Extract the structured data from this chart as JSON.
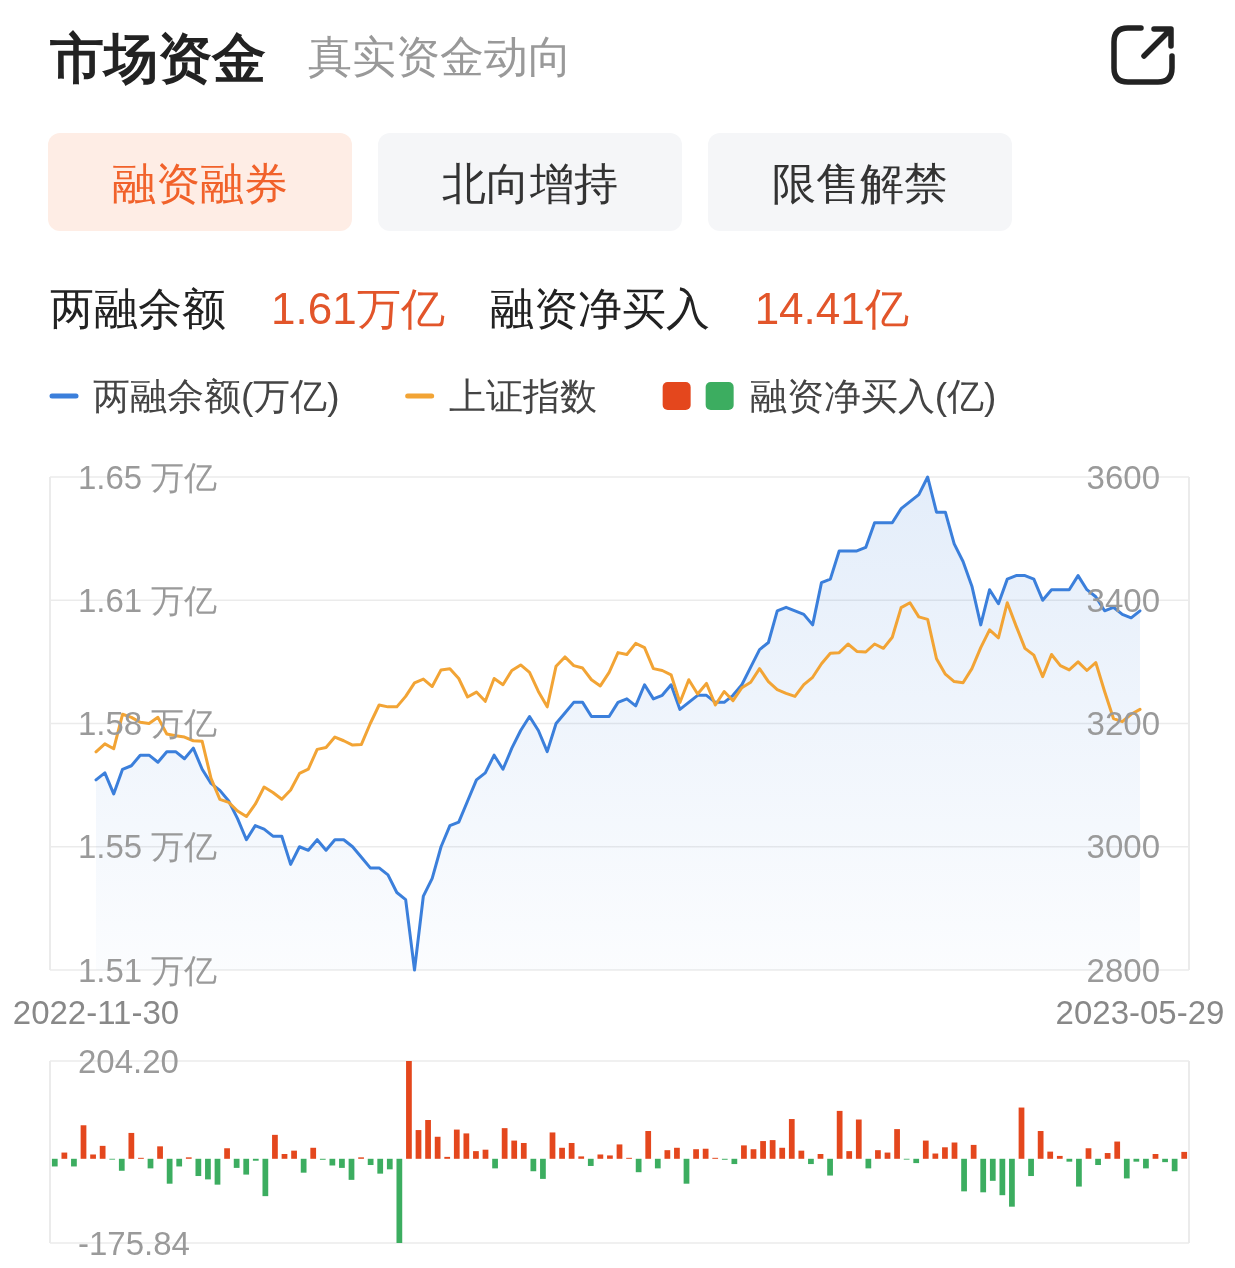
{
  "chart_data": [
    {
      "type": "other",
      "title": "市场资金",
      "subtitle": "真实资金动向",
      "annotations": [
        "融资融券",
        "北向增持",
        "限售解禁",
        "两融余额",
        "1.61万亿",
        "融资净买入",
        "14.41亿"
      ]
    },
    {
      "type": "line",
      "categories": [
        "2022-11-30",
        null,
        null,
        null,
        null,
        null,
        null,
        null,
        null,
        null,
        null,
        null,
        null,
        null,
        null,
        null,
        null,
        null,
        null,
        null,
        null,
        null,
        null,
        null,
        null,
        null,
        null,
        null,
        null,
        null,
        null,
        null,
        null,
        null,
        null,
        null,
        null,
        null,
        null,
        null,
        null,
        null,
        null,
        null,
        null,
        null,
        null,
        null,
        null,
        null,
        null,
        null,
        null,
        null,
        null,
        null,
        null,
        null,
        null,
        null,
        null,
        null,
        null,
        null,
        null,
        null,
        null,
        null,
        null,
        null,
        null,
        null,
        null,
        null,
        null,
        null,
        null,
        null,
        null,
        null,
        null,
        null,
        null,
        null,
        null,
        null,
        null,
        null,
        null,
        null,
        null,
        null,
        null,
        null,
        null,
        null,
        null,
        null,
        null,
        null,
        null,
        null,
        null,
        null,
        null,
        null,
        null,
        null,
        null,
        null,
        null,
        null,
        null,
        null,
        null,
        null,
        null,
        null,
        "2023-05-29"
      ],
      "ylim": [
        1.51,
        1.65
      ],
      "yticks": [
        {
          "value": 1.51,
          "label": "1.51 万亿"
        },
        {
          "value": 1.545,
          "label": "1.55 万亿"
        },
        {
          "value": 1.58,
          "label": "1.58 万亿"
        },
        {
          "value": 1.615,
          "label": "1.61 万亿"
        },
        {
          "value": 1.65,
          "label": "1.65 万亿"
        }
      ],
      "y2lim": [
        2800,
        3600
      ],
      "y2ticks": [
        2800,
        3000,
        3200,
        3400,
        3600
      ],
      "grid": "y",
      "legend": "top",
      "series": [
        {
          "name": "两融余额(万亿)",
          "type": "area",
          "color": "#3b7fdb",
          "values": [
            1.564,
            1.566,
            1.56,
            1.567,
            1.568,
            1.571,
            1.571,
            1.569,
            1.572,
            1.572,
            1.57,
            1.573,
            1.567,
            1.563,
            1.561,
            1.558,
            1.553,
            1.547,
            1.551,
            1.55,
            1.548,
            1.548,
            1.54,
            1.545,
            1.544,
            1.547,
            1.544,
            1.547,
            1.547,
            1.545,
            1.542,
            1.539,
            1.539,
            1.537,
            1.532,
            1.53,
            1.51,
            1.531,
            1.536,
            1.545,
            1.551,
            1.552,
            1.558,
            1.564,
            1.566,
            1.571,
            1.567,
            1.573,
            1.578,
            1.582,
            1.578,
            1.572,
            1.58,
            1.583,
            1.586,
            1.586,
            1.582,
            1.582,
            1.582,
            1.586,
            1.587,
            1.585,
            1.591,
            1.587,
            1.588,
            1.591,
            1.584,
            1.586,
            1.588,
            1.588,
            1.586,
            1.586,
            1.588,
            1.591,
            1.596,
            1.601,
            1.603,
            1.612,
            1.613,
            1.612,
            1.611,
            1.608,
            1.62,
            1.621,
            1.629,
            1.629,
            1.629,
            1.63,
            1.637,
            1.637,
            1.637,
            1.641,
            1.643,
            1.645,
            1.65,
            1.64,
            1.64,
            1.631,
            1.626,
            1.619,
            1.608,
            1.618,
            1.614,
            1.621,
            1.622,
            1.622,
            1.621,
            1.615,
            1.618,
            1.618,
            1.618,
            1.622,
            1.618,
            1.616,
            1.612,
            1.613,
            1.611,
            1.61,
            1.612
          ]
        },
        {
          "name": "上证指数",
          "type": "line",
          "axis": "y2",
          "color": "#f2a435",
          "values": [
            3154,
            3167,
            3159,
            3215,
            3210,
            3202,
            3200,
            3210,
            3183,
            3180,
            3178,
            3172,
            3171,
            3111,
            3077,
            3072,
            3058,
            3049,
            3069,
            3097,
            3088,
            3077,
            3092,
            3119,
            3126,
            3158,
            3161,
            3178,
            3172,
            3165,
            3166,
            3200,
            3230,
            3227,
            3227,
            3244,
            3266,
            3272,
            3260,
            3287,
            3289,
            3273,
            3243,
            3251,
            3236,
            3273,
            3263,
            3286,
            3295,
            3283,
            3252,
            3227,
            3293,
            3308,
            3294,
            3290,
            3271,
            3261,
            3283,
            3315,
            3312,
            3330,
            3323,
            3289,
            3286,
            3279,
            3234,
            3271,
            3248,
            3265,
            3230,
            3252,
            3237,
            3258,
            3267,
            3289,
            3268,
            3255,
            3249,
            3244,
            3263,
            3275,
            3297,
            3314,
            3315,
            3329,
            3317,
            3316,
            3329,
            3322,
            3340,
            3388,
            3396,
            3373,
            3369,
            3305,
            3280,
            3268,
            3266,
            3289,
            3323,
            3352,
            3339,
            3396,
            3358,
            3322,
            3311,
            3276,
            3312,
            3294,
            3287,
            3300,
            3286,
            3299,
            3252,
            3208,
            3203,
            3215,
            3223
          ]
        }
      ]
    },
    {
      "type": "bar",
      "categories": [
        null,
        null,
        null,
        null,
        null,
        null,
        null,
        null,
        null,
        null,
        null,
        null,
        null,
        null,
        null,
        null,
        null,
        null,
        null,
        null,
        null,
        null,
        null,
        null,
        null,
        null,
        null,
        null,
        null,
        null,
        null,
        null,
        null,
        null,
        null,
        null,
        null,
        null,
        null,
        null,
        null,
        null,
        null,
        null,
        null,
        null,
        null,
        null,
        null,
        null,
        null,
        null,
        null,
        null,
        null,
        null,
        null,
        null,
        null,
        null,
        null,
        null,
        null,
        null,
        null,
        null,
        null,
        null,
        null,
        null,
        null,
        null,
        null,
        null,
        null,
        null,
        null,
        null,
        null,
        null,
        null,
        null,
        null,
        null,
        null,
        null,
        null,
        null,
        null,
        null,
        null,
        null,
        null,
        null,
        null,
        null,
        null,
        null,
        null,
        null,
        null,
        null,
        null,
        null,
        null,
        null,
        null,
        null,
        null,
        null,
        null,
        null,
        null,
        null,
        null,
        null,
        null,
        null,
        null
      ],
      "tick_labels": "y",
      "ylim": [
        -175.84,
        204.2
      ],
      "yticks": [
        -175.84,
        {
          "value": 204.2,
          "label": "204.20"
        }
      ],
      "grid": "y",
      "legend": "top",
      "series": [
        {
          "name": "融资净买入(亿)",
          "values": [
            -16,
            13,
            -16,
            70,
            9,
            27,
            -1,
            -25,
            54,
            2,
            -20,
            26,
            -52,
            -16,
            3,
            -36,
            -43,
            -54,
            22,
            -19,
            -33,
            -4,
            -78,
            50,
            10,
            17,
            -29,
            23,
            -2,
            -14,
            -19,
            -44,
            3,
            -13,
            -31,
            -22,
            -175.84,
            204.2,
            60,
            81,
            46,
            4,
            61,
            53,
            16,
            19,
            -20,
            64,
            38,
            33,
            -26,
            -42,
            55,
            23,
            33,
            5,
            -15,
            9,
            7,
            30,
            2,
            -28,
            58,
            -20,
            18,
            23,
            -52,
            20,
            21,
            2,
            -2,
            -11,
            28,
            20,
            37,
            39,
            23,
            83,
            17,
            -11,
            10,
            -35,
            100,
            16,
            82,
            -20,
            18,
            13,
            62,
            -1,
            -9,
            38,
            11,
            24,
            34,
            -68,
            29,
            -70,
            -46,
            -76,
            -100,
            107,
            -36,
            58,
            15,
            6,
            -6,
            -58,
            22,
            -13,
            12,
            36,
            -41,
            -6,
            -20,
            10,
            -7,
            -26,
            14.41
          ],
          "colors": [
            "#3cad60",
            "#e4471d",
            "#3cad60",
            "#e4471d",
            "#e4471d",
            "#e4471d",
            "#3cad60",
            "#3cad60",
            "#e4471d",
            "#e4471d",
            "#3cad60",
            "#e4471d",
            "#3cad60",
            "#3cad60",
            "#e4471d",
            "#3cad60",
            "#3cad60",
            "#3cad60",
            "#e4471d",
            "#3cad60",
            "#3cad60",
            "#3cad60",
            "#3cad60",
            "#e4471d",
            "#e4471d",
            "#e4471d",
            "#3cad60",
            "#e4471d",
            "#3cad60",
            "#3cad60",
            "#3cad60",
            "#3cad60",
            "#e4471d",
            "#3cad60",
            "#3cad60",
            "#3cad60",
            "#3cad60",
            "#e4471d",
            "#e4471d",
            "#e4471d",
            "#e4471d",
            "#e4471d",
            "#e4471d",
            "#e4471d",
            "#e4471d",
            "#e4471d",
            "#3cad60",
            "#e4471d",
            "#e4471d",
            "#e4471d",
            "#3cad60",
            "#3cad60",
            "#e4471d",
            "#e4471d",
            "#e4471d",
            "#e4471d",
            "#3cad60",
            "#e4471d",
            "#e4471d",
            "#e4471d",
            "#e4471d",
            "#3cad60",
            "#e4471d",
            "#3cad60",
            "#e4471d",
            "#e4471d",
            "#3cad60",
            "#e4471d",
            "#e4471d",
            "#e4471d",
            "#3cad60",
            "#3cad60",
            "#e4471d",
            "#e4471d",
            "#e4471d",
            "#e4471d",
            "#e4471d",
            "#e4471d",
            "#e4471d",
            "#3cad60",
            "#e4471d",
            "#3cad60",
            "#e4471d",
            "#e4471d",
            "#e4471d",
            "#3cad60",
            "#e4471d",
            "#e4471d",
            "#e4471d",
            "#3cad60",
            "#3cad60",
            "#e4471d",
            "#e4471d",
            "#e4471d",
            "#e4471d",
            "#3cad60",
            "#e4471d",
            "#3cad60",
            "#3cad60",
            "#3cad60",
            "#3cad60",
            "#e4471d",
            "#3cad60",
            "#e4471d",
            "#e4471d",
            "#e4471d",
            "#3cad60",
            "#3cad60",
            "#e4471d",
            "#3cad60",
            "#e4471d",
            "#e4471d",
            "#3cad60",
            "#3cad60",
            "#3cad60",
            "#e4471d",
            "#3cad60",
            "#3cad60",
            "#e4471d"
          ]
        }
      ]
    }
  ]
}
